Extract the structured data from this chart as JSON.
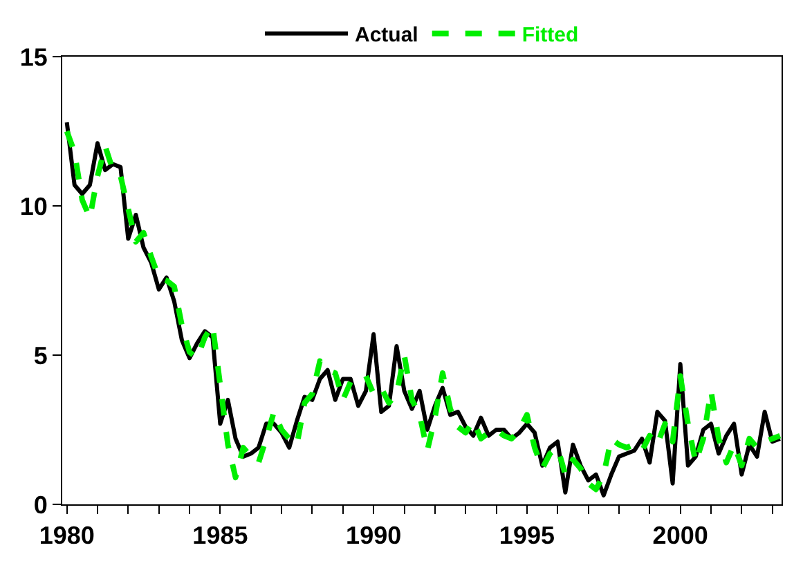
{
  "chart_data": {
    "type": "line",
    "x": [
      1980,
      1980.25,
      1980.5,
      1980.75,
      1981,
      1981.25,
      1981.5,
      1981.75,
      1982,
      1982.25,
      1982.5,
      1982.75,
      1983,
      1983.25,
      1983.5,
      1983.75,
      1984,
      1984.25,
      1984.5,
      1984.75,
      1985,
      1985.25,
      1985.5,
      1985.75,
      1986,
      1986.25,
      1986.5,
      1986.75,
      1987,
      1987.25,
      1987.5,
      1987.75,
      1988,
      1988.25,
      1988.5,
      1988.75,
      1989,
      1989.25,
      1989.5,
      1989.75,
      1990,
      1990.25,
      1990.5,
      1990.75,
      1991,
      1991.25,
      1991.5,
      1991.75,
      1992,
      1992.25,
      1992.5,
      1992.75,
      1993,
      1993.25,
      1993.5,
      1993.75,
      1994,
      1994.25,
      1994.5,
      1994.75,
      1995,
      1995.25,
      1995.5,
      1995.75,
      1996,
      1996.25,
      1996.5,
      1996.75,
      1997,
      1997.25,
      1997.5,
      1997.75,
      1998,
      1998.25,
      1998.5,
      1998.75,
      1999,
      1999.25,
      1999.5,
      1999.75,
      2000,
      2000.25,
      2000.5,
      2000.75,
      2001,
      2001.25,
      2001.5,
      2001.75,
      2002,
      2002.25,
      2002.5,
      2002.75,
      2003,
      2003.25
    ],
    "series": [
      {
        "name": "Actual",
        "color": "#000000",
        "line_style": "solid",
        "values": [
          12.8,
          10.7,
          10.4,
          10.7,
          12.1,
          11.2,
          11.4,
          11.3,
          8.9,
          9.7,
          8.6,
          8.1,
          7.2,
          7.6,
          6.8,
          5.5,
          4.9,
          5.4,
          5.8,
          5.6,
          2.7,
          3.5,
          2.2,
          1.6,
          1.7,
          1.9,
          2.7,
          2.7,
          2.4,
          1.9,
          2.8,
          3.6,
          3.5,
          4.2,
          4.5,
          3.5,
          4.2,
          4.2,
          3.3,
          3.8,
          5.7,
          3.1,
          3.3,
          5.3,
          3.8,
          3.2,
          3.8,
          2.5,
          3.3,
          3.9,
          3.0,
          3.1,
          2.6,
          2.3,
          2.9,
          2.3,
          2.5,
          2.5,
          2.2,
          2.4,
          2.7,
          2.4,
          1.3,
          1.9,
          2.1,
          0.4,
          2.0,
          1.3,
          0.8,
          1.0,
          0.3,
          1.0,
          1.6,
          1.7,
          1.8,
          2.2,
          1.4,
          3.1,
          2.8,
          0.7,
          4.7,
          1.3,
          1.6,
          2.5,
          2.7,
          1.7,
          2.3,
          2.7,
          1.0,
          2.0,
          1.6,
          3.1,
          2.1,
          2.2
        ]
      },
      {
        "name": "Fitted",
        "color": "#00ee00",
        "line_style": "dashed",
        "values": [
          12.5,
          11.8,
          10.2,
          9.6,
          11.0,
          12.0,
          11.2,
          11.0,
          9.9,
          8.8,
          9.1,
          8.3,
          7.6,
          7.5,
          7.3,
          6.0,
          5.1,
          4.9,
          5.6,
          6.0,
          4.0,
          2.0,
          0.9,
          1.9,
          1.6,
          1.4,
          2.2,
          3.1,
          2.5,
          2.2,
          2.0,
          3.4,
          3.7,
          4.8,
          4.5,
          4.4,
          3.5,
          4.1,
          4.2,
          4.3,
          3.7,
          3.9,
          3.4,
          3.7,
          5.0,
          3.5,
          3.0,
          1.8,
          2.9,
          4.4,
          3.2,
          2.6,
          2.4,
          2.8,
          2.2,
          2.4,
          2.5,
          2.3,
          2.2,
          2.5,
          3.0,
          1.9,
          1.2,
          1.7,
          1.9,
          1.0,
          1.5,
          1.2,
          0.7,
          0.5,
          1.0,
          2.2,
          2.0,
          1.9,
          2.0,
          1.8,
          2.3,
          2.0,
          2.7,
          2.1,
          4.3,
          2.7,
          1.4,
          2.2,
          3.8,
          2.2,
          1.4,
          2.0,
          1.3,
          2.2,
          1.9,
          2.1,
          2.2,
          2.3
        ]
      }
    ],
    "xlim": [
      1979.85,
      2003.3
    ],
    "xticks": [
      1980,
      {
        "value": 1981,
        "label": null
      },
      {
        "value": 1982,
        "label": null
      },
      {
        "value": 1983,
        "label": null
      },
      {
        "value": 1984,
        "label": null
      },
      1985,
      {
        "value": 1986,
        "label": null
      },
      {
        "value": 1987,
        "label": null
      },
      {
        "value": 1988,
        "label": null
      },
      {
        "value": 1989,
        "label": null
      },
      1990,
      {
        "value": 1991,
        "label": null
      },
      {
        "value": 1992,
        "label": null
      },
      {
        "value": 1993,
        "label": null
      },
      {
        "value": 1994,
        "label": null
      },
      1995,
      {
        "value": 1996,
        "label": null
      },
      {
        "value": 1997,
        "label": null
      },
      {
        "value": 1998,
        "label": null
      },
      {
        "value": 1999,
        "label": null
      },
      2000,
      {
        "value": 2001,
        "label": null
      },
      {
        "value": 2002,
        "label": null
      },
      {
        "value": 2003,
        "label": null
      }
    ],
    "ylim": [
      0,
      15
    ],
    "yticks": [
      0,
      5,
      10,
      15
    ],
    "legend": "top",
    "marker": "none"
  }
}
